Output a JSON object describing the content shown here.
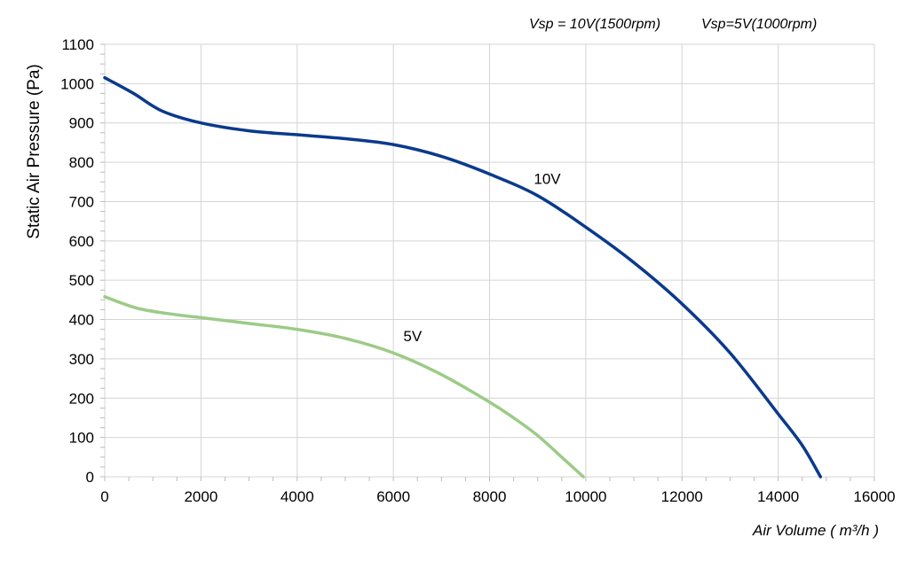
{
  "chart_data": {
    "type": "line",
    "xlabel": "Air Volume ( m³/h )",
    "ylabel": "Static Air Pressure  (Pa)",
    "header_notes": [
      "Vsp = 10V(1500rpm)",
      "Vsp=5V(1000rpm)"
    ],
    "xlim": [
      0,
      16000
    ],
    "ylim": [
      0,
      1100
    ],
    "xticks": [
      0,
      2000,
      4000,
      6000,
      8000,
      10000,
      12000,
      14000,
      16000
    ],
    "yticks": [
      0,
      100,
      200,
      300,
      400,
      500,
      600,
      700,
      800,
      900,
      1000,
      1100
    ],
    "grid": true,
    "series": [
      {
        "name": "10V",
        "color": "#0a3a8c",
        "label_at": [
          9200,
          745
        ],
        "x": [
          0,
          600,
          1200,
          2000,
          3000,
          4000,
          5000,
          6000,
          7000,
          8000,
          9000,
          10000,
          11000,
          12000,
          13000,
          14000,
          14500,
          14880
        ],
        "y": [
          1015,
          975,
          930,
          900,
          880,
          870,
          860,
          845,
          815,
          770,
          715,
          635,
          545,
          440,
          315,
          160,
          80,
          0
        ]
      },
      {
        "name": "5V",
        "color": "#9ccb86",
        "label_at": [
          6400,
          345
        ],
        "x": [
          0,
          700,
          1500,
          2000,
          3000,
          4000,
          5000,
          6000,
          7000,
          8000,
          8500,
          9000,
          9500,
          9950
        ],
        "y": [
          458,
          428,
          412,
          405,
          390,
          375,
          352,
          315,
          260,
          190,
          150,
          105,
          50,
          0
        ]
      }
    ]
  }
}
